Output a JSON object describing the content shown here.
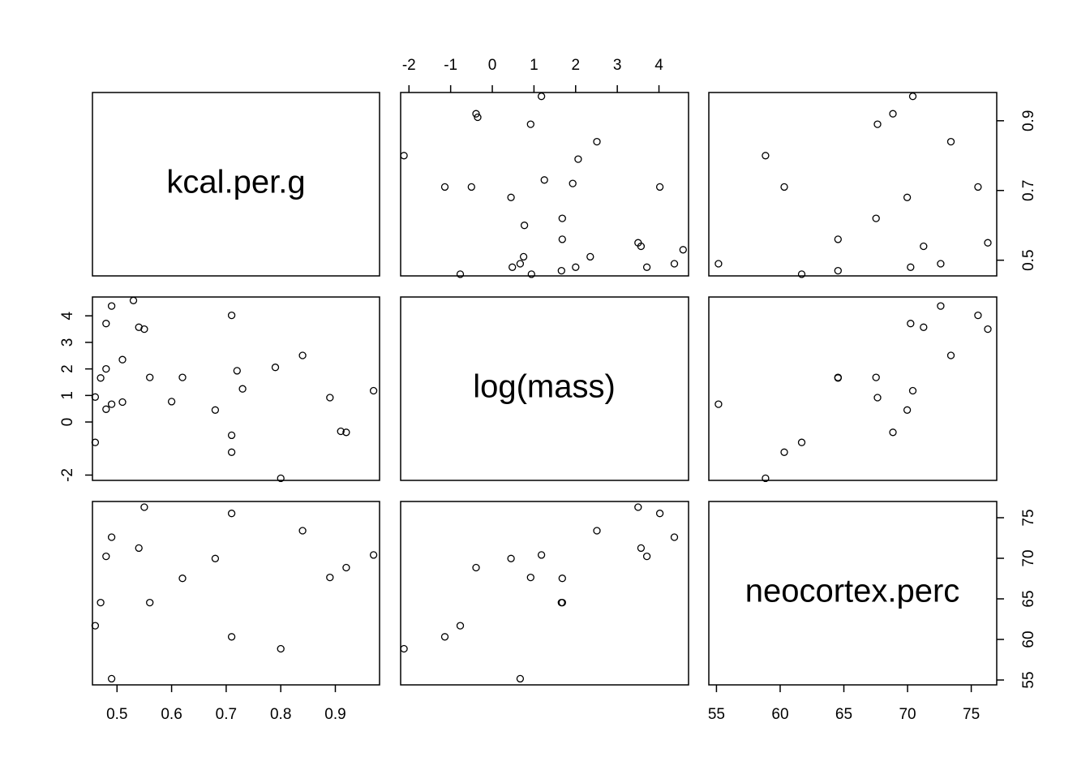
{
  "chart_data": {
    "type": "scatter",
    "variables": [
      "kcal.per.g",
      "log(mass)",
      "neocortex.perc"
    ],
    "colors": {
      "point_stroke": "#000000",
      "frame": "#000000",
      "background": "#ffffff"
    },
    "axes": {
      "kcal.per.g": {
        "lim": [
          0.455,
          0.981
        ],
        "ticks": [
          0.5,
          0.6,
          0.7,
          0.8,
          0.9
        ],
        "tick_labels": [
          "0.5",
          "0.6",
          "0.7",
          "0.8",
          "0.9"
        ],
        "alt_ticks": [
          0.5,
          0.7,
          0.9
        ],
        "alt_tick_labels": [
          "0.5",
          "0.7",
          "0.9"
        ]
      },
      "log(mass)": {
        "lim": [
          -2.2,
          4.71
        ],
        "ticks": [
          -2,
          -1,
          0,
          1,
          2,
          3,
          4
        ],
        "tick_labels": [
          "-2",
          "-1",
          "0",
          "1",
          "2",
          "3",
          "4"
        ],
        "alt_ticks": [
          -2,
          0,
          1,
          2,
          3,
          4
        ],
        "alt_tick_labels": [
          "-2",
          "0",
          "1",
          "2",
          "3",
          "4"
        ]
      },
      "neocortex.perc": {
        "lim": [
          54.4,
          77.0
        ],
        "ticks": [
          55,
          60,
          65,
          70,
          75
        ],
        "tick_labels": [
          "55",
          "60",
          "65",
          "70",
          "75"
        ]
      }
    },
    "points": [
      {
        "kcal": 0.49,
        "logmass": 0.67,
        "neo": 55.16
      },
      {
        "kcal": 0.47,
        "logmass": 1.66,
        "neo": 64.54
      },
      {
        "kcal": 0.56,
        "logmass": 1.68,
        "neo": 64.54
      },
      {
        "kcal": 0.89,
        "logmass": 0.92,
        "neo": 67.64
      },
      {
        "kcal": 0.92,
        "logmass": -0.39,
        "neo": 68.85
      },
      {
        "kcal": 0.8,
        "logmass": -2.12,
        "neo": 58.85
      },
      {
        "kcal": 0.46,
        "logmass": -0.77,
        "neo": 61.69
      },
      {
        "kcal": 0.71,
        "logmass": -1.14,
        "neo": 60.32
      },
      {
        "kcal": 0.71,
        "logmass": -0.5,
        "neo": null
      },
      {
        "kcal": 0.73,
        "logmass": 1.25,
        "neo": null
      },
      {
        "kcal": 0.68,
        "logmass": 0.45,
        "neo": 69.97
      },
      {
        "kcal": 0.97,
        "logmass": 1.18,
        "neo": 70.41
      },
      {
        "kcal": 0.84,
        "logmass": 2.51,
        "neo": 73.4
      },
      {
        "kcal": 0.62,
        "logmass": 1.68,
        "neo": 67.53
      },
      {
        "kcal": 0.54,
        "logmass": 3.57,
        "neo": 71.26
      },
      {
        "kcal": 0.49,
        "logmass": 4.37,
        "neo": 72.6
      },
      {
        "kcal": 0.48,
        "logmass": 3.71,
        "neo": 70.24
      },
      {
        "kcal": 0.55,
        "logmass": 3.5,
        "neo": 76.3
      },
      {
        "kcal": 0.71,
        "logmass": 4.02,
        "neo": 75.53
      },
      {
        "kcal": 0.91,
        "logmass": -0.35,
        "neo": null
      },
      {
        "kcal": 0.72,
        "logmass": 1.93,
        "neo": null
      },
      {
        "kcal": 0.79,
        "logmass": 2.06,
        "neo": null
      },
      {
        "kcal": 0.6,
        "logmass": 0.77,
        "neo": null
      },
      {
        "kcal": 0.53,
        "logmass": 4.58,
        "neo": null
      },
      {
        "kcal": 0.51,
        "logmass": 2.35,
        "neo": null
      },
      {
        "kcal": 0.51,
        "logmass": 0.75,
        "neo": null
      },
      {
        "kcal": 0.48,
        "logmass": 2.0,
        "neo": null
      },
      {
        "kcal": 0.48,
        "logmass": 0.48,
        "neo": null
      },
      {
        "kcal": 0.46,
        "logmass": 0.94,
        "neo": null
      }
    ]
  }
}
